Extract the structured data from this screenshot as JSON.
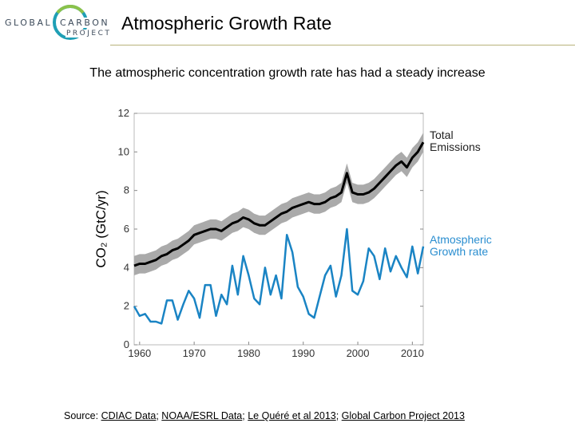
{
  "logo": {
    "line1_left": "GLOBAL",
    "line1_right": "CARBON",
    "line2": "PROJECT"
  },
  "header": {
    "title": "Atmospheric Growth Rate"
  },
  "subtitle": "The atmospheric concentration growth rate has had a steady increase",
  "source": {
    "prefix": "Source: ",
    "links": [
      "CDIAC Data",
      "NOAA/ESRL Data",
      "Le Quéré et al 2013",
      "Global Carbon Project 2013"
    ],
    "separator": "; "
  },
  "colors": {
    "emissions": "#000000",
    "uncertainty": "#aaaaaa",
    "growth": "#1a84c4",
    "growth_label": "#2a8ed0"
  },
  "chart_data": {
    "type": "line",
    "ylabel": "CO₂ (GtC/yr)",
    "xlim": [
      1959,
      2012
    ],
    "ylim": [
      0,
      12
    ],
    "x_ticks": [
      1960,
      1970,
      1980,
      1990,
      2000,
      2010
    ],
    "y_ticks": [
      0,
      2,
      4,
      6,
      8,
      10,
      12
    ],
    "grid": false,
    "series": [
      {
        "name": "Total Emissions",
        "label_lines": [
          "Total",
          "Emissions"
        ],
        "x": [
          1959,
          1960,
          1961,
          1962,
          1963,
          1964,
          1965,
          1966,
          1967,
          1968,
          1969,
          1970,
          1971,
          1972,
          1973,
          1974,
          1975,
          1976,
          1977,
          1978,
          1979,
          1980,
          1981,
          1982,
          1983,
          1984,
          1985,
          1986,
          1987,
          1988,
          1989,
          1990,
          1991,
          1992,
          1993,
          1994,
          1995,
          1996,
          1997,
          1998,
          1999,
          2000,
          2001,
          2002,
          2003,
          2004,
          2005,
          2006,
          2007,
          2008,
          2009,
          2010,
          2011,
          2012
        ],
        "values": [
          4.1,
          4.2,
          4.2,
          4.3,
          4.4,
          4.6,
          4.7,
          4.9,
          5.0,
          5.2,
          5.4,
          5.7,
          5.8,
          5.9,
          6.0,
          6.0,
          5.9,
          6.1,
          6.3,
          6.4,
          6.6,
          6.5,
          6.3,
          6.2,
          6.2,
          6.4,
          6.6,
          6.8,
          6.9,
          7.1,
          7.2,
          7.3,
          7.4,
          7.3,
          7.3,
          7.4,
          7.6,
          7.7,
          7.9,
          8.9,
          7.9,
          7.8,
          7.8,
          7.9,
          8.1,
          8.4,
          8.7,
          9.0,
          9.3,
          9.5,
          9.2,
          9.7,
          10.0,
          10.5
        ],
        "band": 0.5
      },
      {
        "name": "Atmospheric Growth rate",
        "label_lines": [
          "Atmospheric",
          "Growth rate"
        ],
        "x": [
          1959,
          1960,
          1961,
          1962,
          1963,
          1964,
          1965,
          1966,
          1967,
          1968,
          1969,
          1970,
          1971,
          1972,
          1973,
          1974,
          1975,
          1976,
          1977,
          1978,
          1979,
          1980,
          1981,
          1982,
          1983,
          1984,
          1985,
          1986,
          1987,
          1988,
          1989,
          1990,
          1991,
          1992,
          1993,
          1994,
          1995,
          1996,
          1997,
          1998,
          1999,
          2000,
          2001,
          2002,
          2003,
          2004,
          2005,
          2006,
          2007,
          2008,
          2009,
          2010,
          2011,
          2012
        ],
        "values": [
          2.0,
          1.5,
          1.6,
          1.2,
          1.2,
          1.1,
          2.3,
          2.3,
          1.3,
          2.1,
          2.8,
          2.4,
          1.4,
          3.1,
          3.1,
          1.5,
          2.6,
          2.1,
          4.1,
          2.6,
          4.6,
          3.6,
          2.4,
          2.1,
          4.0,
          2.6,
          3.6,
          2.4,
          5.7,
          4.8,
          3.0,
          2.5,
          1.6,
          1.4,
          2.5,
          3.6,
          4.1,
          2.5,
          3.6,
          6.0,
          2.8,
          2.6,
          3.3,
          5.0,
          4.6,
          3.4,
          5.0,
          3.8,
          4.6,
          4.0,
          3.5,
          5.1,
          3.7,
          5.1
        ]
      }
    ]
  }
}
